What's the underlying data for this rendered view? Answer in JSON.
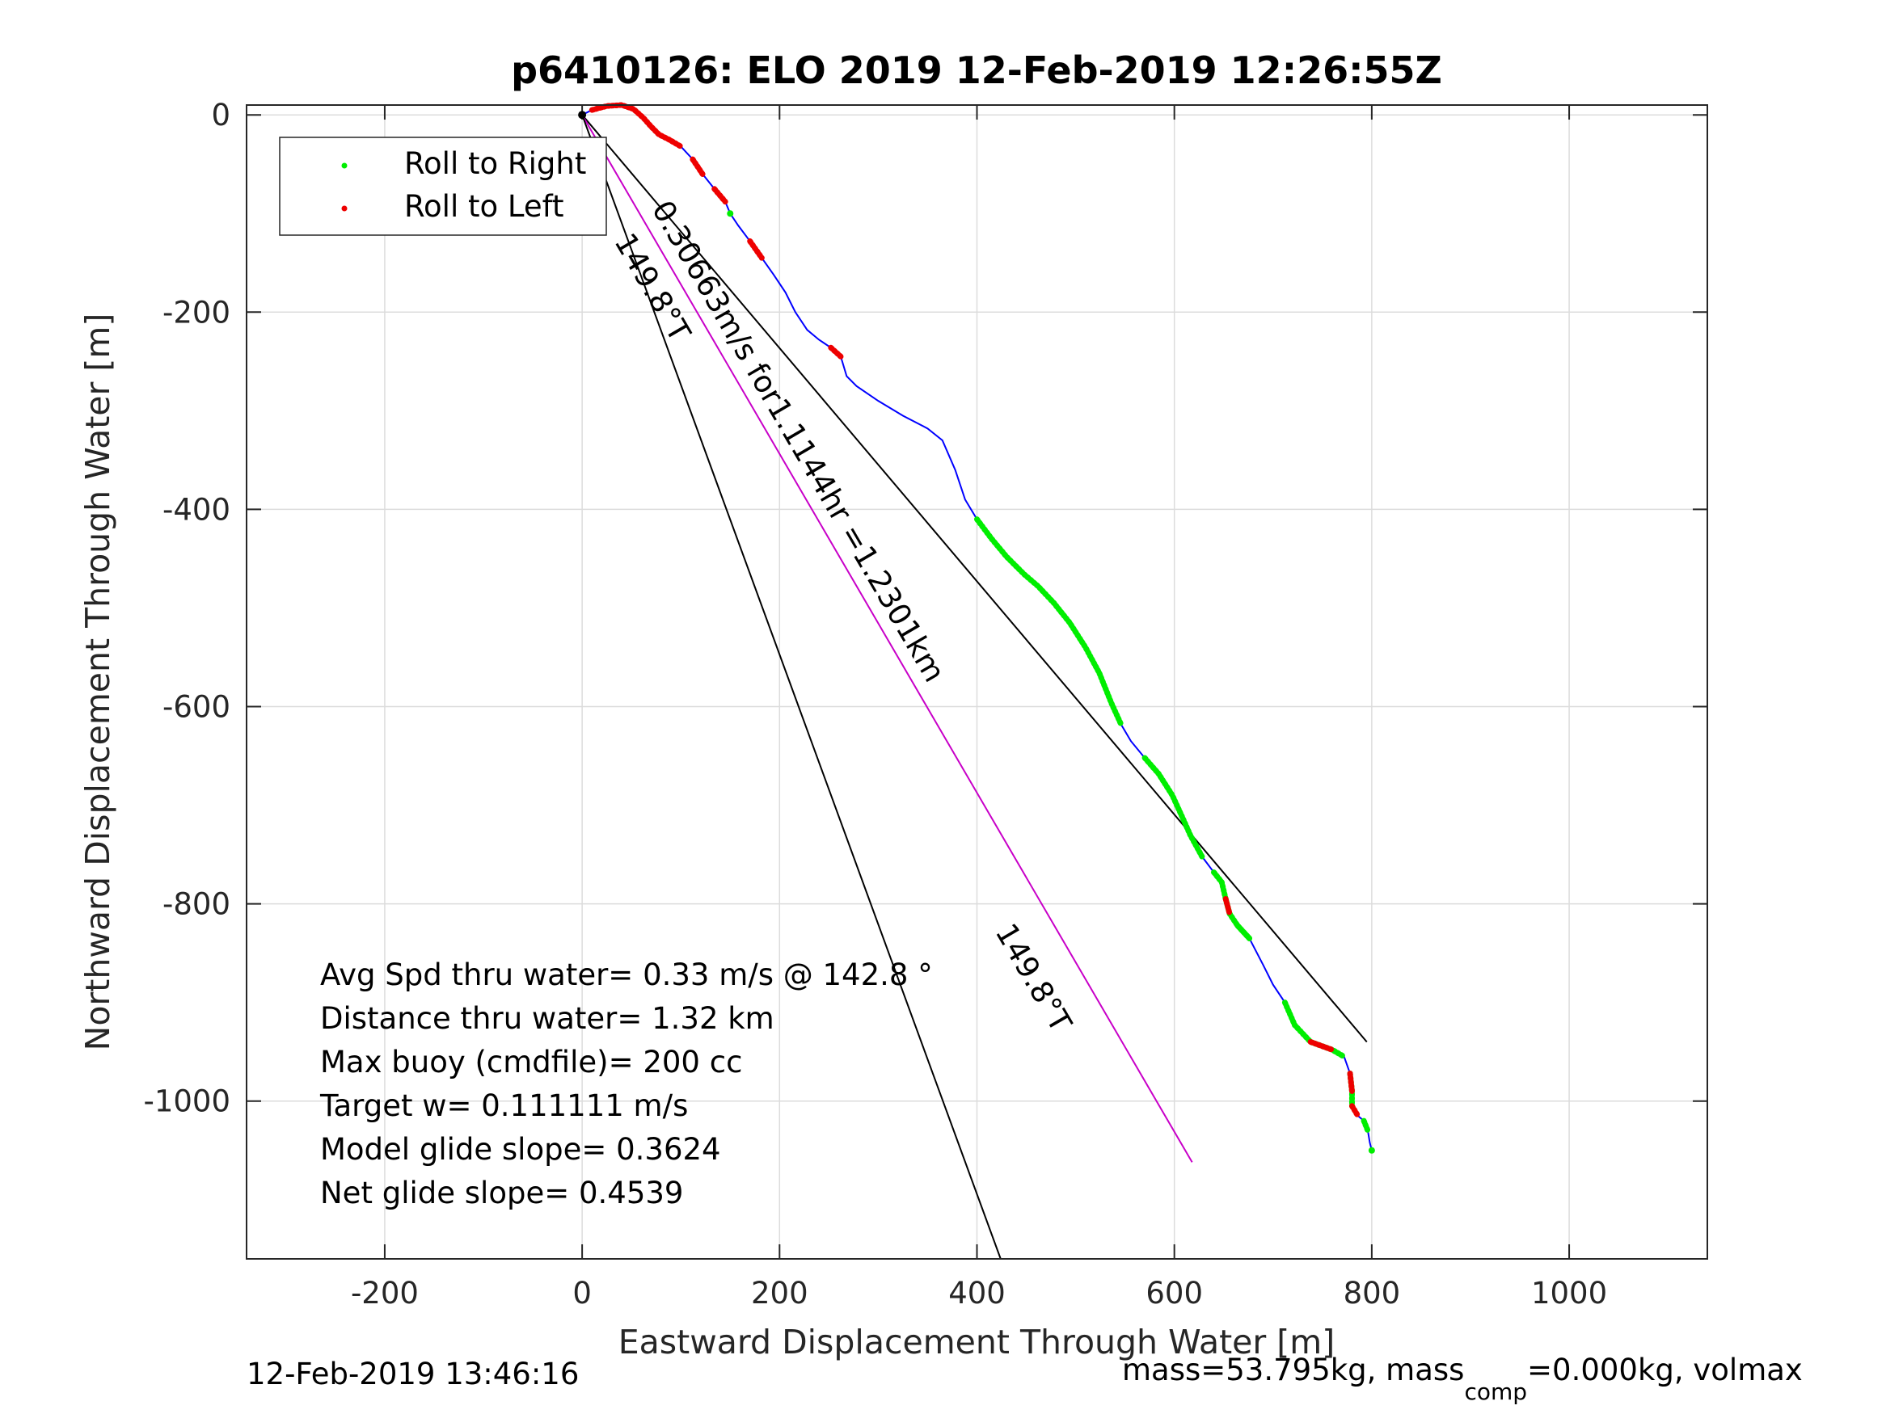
{
  "chart_data": {
    "type": "line",
    "title": "p6410126: ELO 2019 12-Feb-2019 12:26:55Z",
    "xlabel": "Eastward Displacement Through Water [m]",
    "ylabel": "Northward Displacement Through Water [m]",
    "xlim": [
      -340,
      1140
    ],
    "ylim": [
      -1160,
      10
    ],
    "xticks": [
      -200,
      0,
      200,
      400,
      600,
      800,
      1000
    ],
    "yticks": [
      0,
      -200,
      -400,
      -600,
      -800,
      -1000
    ],
    "xtick_labels": [
      "-200",
      "0",
      "200",
      "400",
      "600",
      "800",
      "1000"
    ],
    "ytick_labels": [
      "0",
      "-200",
      "-400",
      "-600",
      "-800",
      "-1000"
    ],
    "grid": true,
    "legend_position": "top-left",
    "legend": [
      {
        "label": "Roll to Right",
        "color": "#00ee00"
      },
      {
        "label": "Roll to Left",
        "color": "#ee0000"
      }
    ],
    "track": {
      "name": "",
      "color": "#0000ff",
      "x": [
        0,
        10,
        25,
        40,
        52,
        62,
        70,
        78,
        88,
        100,
        112,
        122,
        134,
        145,
        150,
        158,
        170,
        182,
        194,
        206,
        216,
        228,
        240,
        252,
        262,
        268,
        278,
        300,
        325,
        350,
        365,
        378,
        388,
        400,
        415,
        430,
        448,
        462,
        478,
        494,
        510,
        524,
        536,
        546,
        556,
        570,
        584,
        598,
        608,
        616,
        628,
        640,
        648,
        652,
        656,
        664,
        676,
        690,
        700,
        712,
        722,
        738,
        760,
        772,
        778,
        780,
        780,
        786,
        792,
        796,
        798,
        800
      ],
      "y": [
        0,
        5,
        9,
        10,
        6,
        -3,
        -12,
        -20,
        -25,
        -32,
        -45,
        -60,
        -75,
        -88,
        -100,
        -112,
        -128,
        -145,
        -162,
        -180,
        -200,
        -218,
        -228,
        -236,
        -245,
        -265,
        -275,
        -290,
        -305,
        -318,
        -330,
        -360,
        -390,
        -410,
        -430,
        -448,
        -466,
        -478,
        -495,
        -515,
        -540,
        -566,
        -596,
        -618,
        -635,
        -652,
        -668,
        -690,
        -712,
        -730,
        -752,
        -768,
        -778,
        -795,
        -810,
        -822,
        -835,
        -862,
        -882,
        -900,
        -923,
        -940,
        -948,
        -955,
        -972,
        -990,
        -1005,
        -1015,
        -1020,
        -1030,
        -1042,
        -1050
      ],
      "roll_right_ranges": [
        [
          55,
          56
        ],
        [
          14,
          14
        ],
        [
          33,
          43
        ],
        [
          45,
          50
        ],
        [
          51,
          56
        ],
        [
          59,
          63
        ],
        [
          64,
          66
        ],
        [
          68,
          69
        ],
        [
          71,
          71
        ]
      ],
      "roll_left_ranges": [
        [
          1,
          9
        ],
        [
          10,
          11
        ],
        [
          12,
          13
        ],
        [
          16,
          17
        ],
        [
          23,
          24
        ],
        [
          53,
          54
        ],
        [
          61,
          62
        ],
        [
          64,
          65
        ],
        [
          66,
          67
        ]
      ]
    },
    "lines": [
      {
        "name": "",
        "x": [
          0,
          795
        ],
        "y": [
          0,
          -940
        ],
        "color": "#000000"
      },
      {
        "name": "",
        "x": [
          0,
          618
        ],
        "y": [
          0,
          -1062
        ],
        "color": "#c800c8"
      },
      {
        "name": "",
        "x": [
          0,
          424
        ],
        "y": [
          0,
          -1160
        ],
        "color": "#000000"
      }
    ],
    "line_labels": [
      {
        "text": "0.30663m/s for1.1144hr =1.2301km",
        "x": 70,
        "y": -95,
        "angle": 59.8
      },
      {
        "text": "149.8°T",
        "x": 32,
        "y": -128,
        "angle": 59.8
      },
      {
        "text": "149.8°T",
        "x": 418,
        "y": -828,
        "angle": 59.8
      }
    ],
    "annotations": [
      "Avg Spd thru water=  0.33 m/s @ 142.8  °",
      "Distance thru water=  1.32 km",
      "Max buoy (cmdfile)= 200 cc",
      "Target w= 0.111111 m/s",
      "Model glide slope= 0.3624",
      "Net glide slope= 0.4539"
    ],
    "footer_left": "12-Feb-2019 13:46:16",
    "footer_right_parts": [
      "mass=53.795kg, mass",
      "comp",
      "=0.000kg, volmax"
    ]
  }
}
